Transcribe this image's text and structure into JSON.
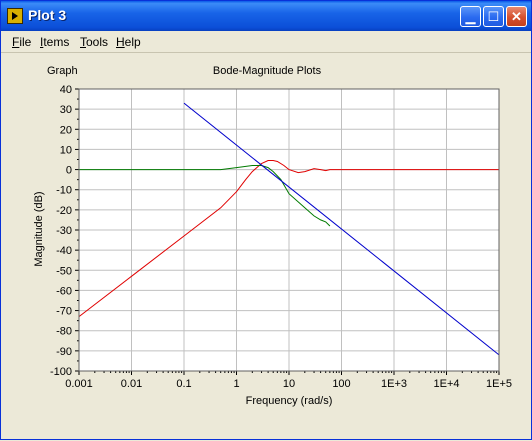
{
  "window": {
    "title": "Plot 3",
    "buttons": {
      "minimize": "minimize",
      "maximize": "maximize",
      "close": "close"
    }
  },
  "menu": [
    {
      "label": "File",
      "underline": "F"
    },
    {
      "label": "Items",
      "underline": "I"
    },
    {
      "label": "Tools",
      "underline": "T"
    },
    {
      "label": "Help",
      "underline": "H"
    }
  ],
  "graph_label": "Graph",
  "colors": {
    "red": "#e00000",
    "green": "#007a00",
    "blue": "#0000cc",
    "grid": "#c0c0c0",
    "plot_bg": "#ffffff"
  },
  "chart_data": {
    "type": "line",
    "title": "Bode-Magnitude Plots",
    "xlabel": "Frequency (rad/s)",
    "ylabel": "Magnitude (dB)",
    "xscale": "log",
    "xlim": [
      0.001,
      100000
    ],
    "ylim": [
      -100,
      40
    ],
    "grid": true,
    "xticks": [
      "0.001",
      "0.01",
      "0.1",
      "1",
      "10",
      "100",
      "1E+3",
      "1E+4",
      "1E+5"
    ],
    "yticks": [
      40,
      30,
      20,
      10,
      0,
      -10,
      -20,
      -30,
      -40,
      -50,
      -60,
      -70,
      -80,
      -90,
      -100
    ],
    "series": [
      {
        "color": "red",
        "x": [
          0.001,
          0.01,
          0.1,
          0.5,
          1,
          1.5,
          2,
          3,
          4,
          5,
          6,
          8,
          10,
          15,
          20,
          30,
          40,
          50,
          60,
          80,
          100,
          1000,
          10000,
          100000
        ],
        "y": [
          -73,
          -53,
          -33,
          -19,
          -11,
          -5,
          -1,
          3,
          4.5,
          4.5,
          4,
          2,
          0,
          -1.5,
          -1,
          0.5,
          0,
          -0.5,
          0,
          0,
          0,
          0,
          0,
          0
        ]
      },
      {
        "color": "green",
        "x": [
          0.001,
          0.01,
          0.1,
          0.5,
          1,
          2,
          3,
          4,
          5,
          7,
          10,
          20,
          30,
          40,
          50,
          60
        ],
        "y": [
          0,
          0,
          0,
          0,
          1,
          2,
          2,
          1,
          -1,
          -5,
          -12,
          -19,
          -23,
          -25,
          -26,
          -28
        ]
      },
      {
        "color": "blue",
        "x": [
          0.1,
          100000
        ],
        "y": [
          33,
          -92
        ]
      }
    ]
  }
}
